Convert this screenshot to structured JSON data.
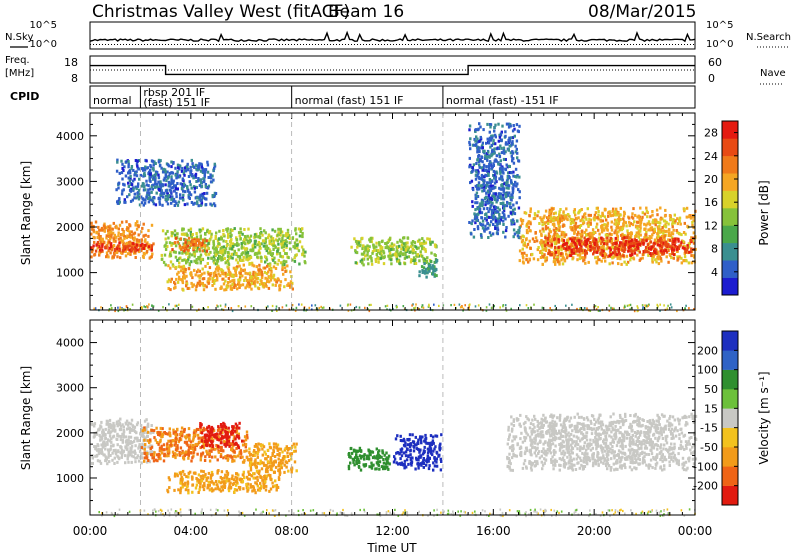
{
  "header": {
    "station": "Christmas Valley West (fitACF)",
    "beam": "Beam 16",
    "date": "08/Mar/2015"
  },
  "strip_labels": {
    "nsky": "N.Sky",
    "nsearch": "N.Search",
    "freq_line1": "Freq.",
    "freq_line2": "[MHz]",
    "nave": "Nave",
    "cpid": "CPID"
  },
  "noise_ticks_left": [
    "10^5",
    "10^0"
  ],
  "noise_ticks_right": [
    "10^5",
    "10^0"
  ],
  "freq_ticks": [
    "18",
    "8"
  ],
  "nave_ticks": [
    "60",
    "0"
  ],
  "cpid_segments": [
    {
      "line1": "normal",
      "line2": "",
      "start": 0,
      "end": 2.0
    },
    {
      "line1": "rbsp 201 IF",
      "line2": "(fast) 151 IF",
      "start": 2.0,
      "end": 8.0
    },
    {
      "line1": "normal (fast) 151 IF",
      "line2": "",
      "start": 8.0,
      "end": 14.0
    },
    {
      "line1": "normal (fast) -151 IF",
      "line2": "",
      "start": 14.0,
      "end": 24.0
    }
  ],
  "power_panel": {
    "ylabel": "Slant Range [km]",
    "yticks": [
      "1000",
      "2000",
      "3000",
      "4000"
    ],
    "colorbar_label": "Power [dB]",
    "colorbar_ticks": [
      "4",
      "8",
      "12",
      "16",
      "20",
      "24",
      "28"
    ],
    "colors": [
      "#1c1cd0",
      "#2f5fc8",
      "#3a8f90",
      "#4aa84a",
      "#86c23a",
      "#d8d22a",
      "#f5a623",
      "#f07a1a",
      "#e84a14",
      "#e41a10"
    ]
  },
  "velocity_panel": {
    "ylabel": "Slant Range [km]",
    "yticks": [
      "1000",
      "2000",
      "3000",
      "4000"
    ],
    "colorbar_label": "Velocity [m s⁻¹]",
    "colorbar_ticks": [
      "200",
      "100",
      "50",
      "15",
      "-15",
      "-50",
      "-100",
      "-200"
    ],
    "colors": [
      "#1d2fbf",
      "#2f63c6",
      "#2f8f2f",
      "#6cc03a",
      "#c8c8c4",
      "#f3c21e",
      "#f29b1a",
      "#ef6416",
      "#e21b10"
    ]
  },
  "xaxis": {
    "label": "Time UT",
    "ticks": [
      "00:00",
      "04:00",
      "08:00",
      "12:00",
      "16:00",
      "20:00",
      "00:00"
    ]
  },
  "chart_data": {
    "type": "heatmap",
    "title": "Christmas Valley West (fitACF) Beam 16 08/Mar/2015",
    "xlabel": "Time UT",
    "ylabel": "Slant Range [km]",
    "xlim": [
      0,
      24
    ],
    "ylim": [
      180,
      4500
    ],
    "nsky_level": 1.5,
    "frequency_mhz": [
      {
        "start": 0,
        "end": 3.0,
        "value": 15
      },
      {
        "start": 3.0,
        "end": 15.0,
        "value": 11
      },
      {
        "start": 15.0,
        "end": 24,
        "value": 15
      }
    ],
    "nave_level": 30,
    "power_blobs": [
      {
        "t0": 0.0,
        "t1": 2.5,
        "r0": 1350,
        "r1": 2150,
        "dB": 22
      },
      {
        "t0": 0.0,
        "t1": 2.5,
        "r0": 1500,
        "r1": 1700,
        "dB": 28
      },
      {
        "t0": 2.8,
        "t1": 8.5,
        "r0": 1200,
        "r1": 2000,
        "dB": 14
      },
      {
        "t0": 3.2,
        "t1": 4.6,
        "r0": 1500,
        "r1": 1800,
        "dB": 24
      },
      {
        "t0": 3.0,
        "t1": 8.0,
        "r0": 650,
        "r1": 1200,
        "dB": 20
      },
      {
        "t0": 10.3,
        "t1": 13.8,
        "r0": 1200,
        "r1": 1800,
        "dB": 14
      },
      {
        "t0": 13.0,
        "t1": 13.8,
        "r0": 900,
        "r1": 1300,
        "dB": 8
      },
      {
        "t0": 17.0,
        "t1": 24.0,
        "r0": 1200,
        "r1": 2450,
        "dB": 20
      },
      {
        "t0": 18.0,
        "t1": 24.0,
        "r0": 1400,
        "r1": 1800,
        "dB": 28
      },
      {
        "t0": 1.0,
        "t1": 5.0,
        "r0": 2500,
        "r1": 3500,
        "dB": 4
      },
      {
        "t0": 15.0,
        "t1": 17.0,
        "r0": 1800,
        "r1": 4300,
        "dB": 4
      }
    ],
    "velocity_blobs": [
      {
        "t0": 0.0,
        "t1": 2.5,
        "r0": 1350,
        "r1": 2350,
        "v": 0
      },
      {
        "t0": 2.0,
        "t1": 6.2,
        "r0": 1400,
        "r1": 2150,
        "v": -75
      },
      {
        "t0": 4.3,
        "t1": 6.0,
        "r0": 1700,
        "r1": 2250,
        "v": -200
      },
      {
        "t0": 6.0,
        "t1": 8.2,
        "r0": 1150,
        "r1": 1800,
        "v": -40
      },
      {
        "t0": 3.0,
        "t1": 7.5,
        "r0": 700,
        "r1": 1200,
        "v": -40
      },
      {
        "t0": 10.2,
        "t1": 12.0,
        "r0": 1200,
        "r1": 1700,
        "v": 60
      },
      {
        "t0": 12.0,
        "t1": 13.9,
        "r0": 1200,
        "r1": 2000,
        "v": 200
      },
      {
        "t0": 16.5,
        "t1": 24.0,
        "r0": 1200,
        "r1": 2450,
        "v": 0
      }
    ]
  }
}
